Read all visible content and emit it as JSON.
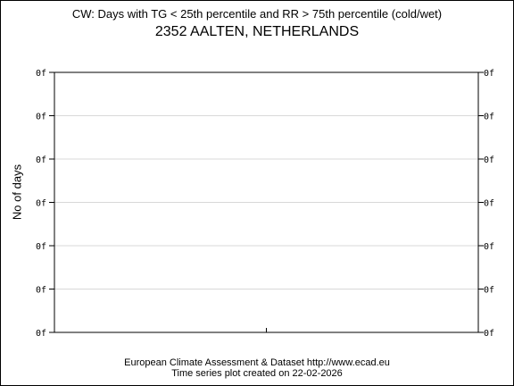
{
  "chart_data": {
    "type": "line",
    "title": "CW: Days with TG < 25th percentile and RR > 75th percentile (cold/wet)",
    "subtitle": "2352 AALTEN, NETHERLANDS",
    "ylabel": "No of days",
    "xlabel": "",
    "y_tick_labels": [
      "0f",
      "0f",
      "0f",
      "0f",
      "0f",
      "0f",
      "0f"
    ],
    "grid": true,
    "series": []
  },
  "footer": {
    "line1": "European Climate Assessment & Dataset  http://www.ecad.eu",
    "line2": "Time series plot created on 22-02-2026"
  }
}
